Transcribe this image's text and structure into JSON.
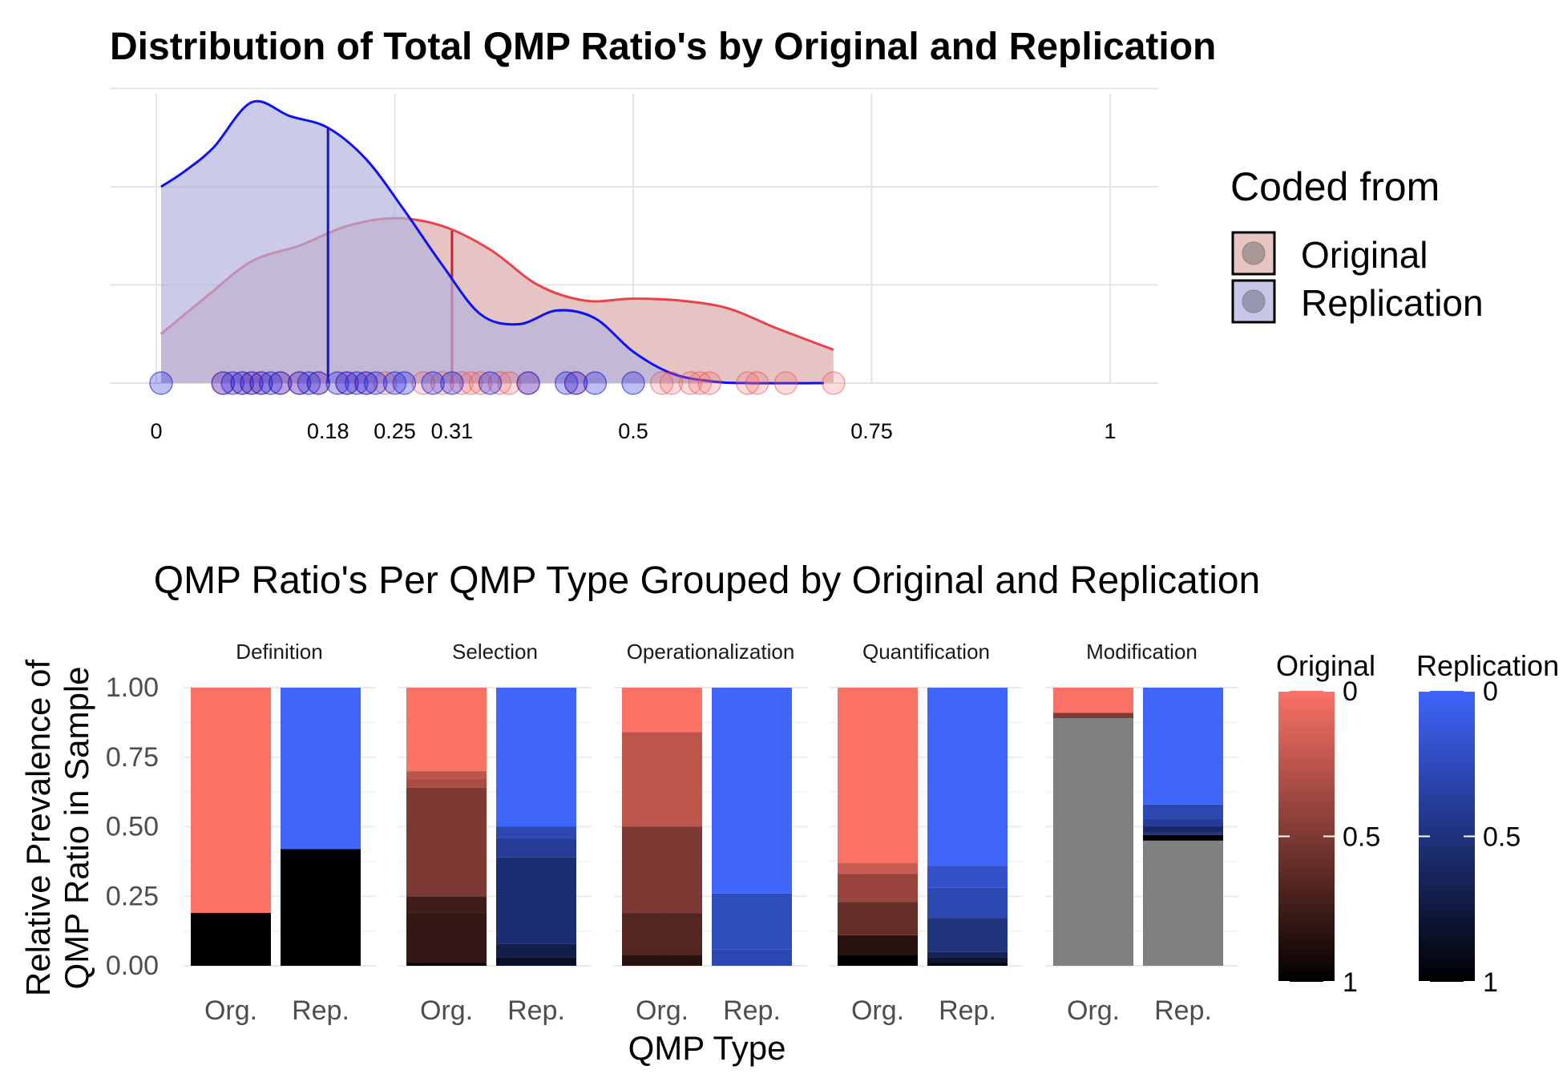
{
  "chart_data": [
    {
      "type": "area",
      "title": "Distribution of Total QMP Ratio's by Original and Replication",
      "xlabel": "",
      "ylabel": "",
      "xlim": [
        0,
        1
      ],
      "x_ticks": [
        0,
        0.18,
        0.25,
        0.31,
        0.5,
        0.75,
        1
      ],
      "x_tick_labels": [
        "0",
        "0.18",
        "0.25",
        "0.31",
        "0.5",
        "0.75",
        "1"
      ],
      "grid": true,
      "legend": {
        "title": "Coded from",
        "placement": "right",
        "entries": [
          "Original",
          "Replication"
        ]
      },
      "colors": {
        "Original": "#e8434a",
        "Replication": "#1010f0",
        "Original_fill": "#e6c4c4",
        "Replication_fill": "#c6c6e8"
      },
      "series": [
        {
          "name": "Original",
          "median": 0.31,
          "density_x": [
            0.005,
            0.05,
            0.1,
            0.15,
            0.2,
            0.25,
            0.3,
            0.35,
            0.4,
            0.45,
            0.5,
            0.55,
            0.6,
            0.65,
            0.71
          ],
          "density_y": [
            0.25,
            0.43,
            0.62,
            0.7,
            0.8,
            0.84,
            0.8,
            0.68,
            0.5,
            0.42,
            0.43,
            0.42,
            0.38,
            0.28,
            0.17
          ],
          "points": [
            0.07,
            0.09,
            0.1,
            0.11,
            0.13,
            0.15,
            0.17,
            0.2,
            0.22,
            0.24,
            0.28,
            0.3,
            0.32,
            0.33,
            0.34,
            0.36,
            0.37,
            0.39,
            0.44,
            0.53,
            0.54,
            0.56,
            0.57,
            0.58,
            0.62,
            0.63,
            0.66,
            0.71
          ]
        },
        {
          "name": "Replication",
          "median": 0.18,
          "density_x": [
            0.005,
            0.03,
            0.06,
            0.1,
            0.14,
            0.18,
            0.22,
            0.26,
            0.3,
            0.34,
            0.38,
            0.42,
            0.46,
            0.5,
            0.54,
            0.58,
            0.62,
            0.7
          ],
          "density_y": [
            1.0,
            1.08,
            1.2,
            1.43,
            1.36,
            1.3,
            1.14,
            0.88,
            0.6,
            0.35,
            0.3,
            0.37,
            0.33,
            0.16,
            0.05,
            0.01,
            0.0,
            0.0
          ],
          "points": [
            0.005,
            0.07,
            0.08,
            0.09,
            0.1,
            0.11,
            0.12,
            0.13,
            0.15,
            0.16,
            0.17,
            0.19,
            0.2,
            0.21,
            0.22,
            0.23,
            0.25,
            0.26,
            0.29,
            0.31,
            0.35,
            0.39,
            0.43,
            0.44,
            0.46,
            0.5
          ]
        }
      ]
    },
    {
      "type": "bar",
      "title": "QMP Ratio's Per QMP Type Grouped by Original and Replication",
      "xlabel": "QMP Type",
      "ylabel": "Relative Prevalence of QMP Ratio in Sample",
      "ylim": [
        0,
        1
      ],
      "y_ticks": [
        "0.00",
        "0.25",
        "0.50",
        "0.75",
        "1.00"
      ],
      "bar_labels": [
        "Org.",
        "Rep."
      ],
      "facets": [
        "Definition",
        "Selection",
        "Operationalization",
        "Quantification",
        "Modification"
      ],
      "na_color": "#808080",
      "colorbars": [
        {
          "title": "Original",
          "from": "#fa7266",
          "to": "#000000",
          "ticks": [
            "0",
            "0.5",
            "1"
          ]
        },
        {
          "title": "Replication",
          "from": "#3f65fb",
          "to": "#000000",
          "ticks": [
            "0",
            "0.5",
            "1"
          ]
        }
      ],
      "stacks": [
        [
          [
            {
              "ratio": 1,
              "share": 0.19
            },
            {
              "ratio": 0,
              "share": 0.81
            }
          ],
          [
            {
              "ratio": 1,
              "share": 0.42
            },
            {
              "ratio": 0,
              "share": 0.58
            }
          ]
        ],
        [
          [
            {
              "ratio": 1,
              "share": 0.01
            },
            {
              "ratio": 0.8,
              "share": 0.18
            },
            {
              "ratio": 0.75,
              "share": 0.06
            },
            {
              "ratio": 0.5,
              "share": 0.39
            },
            {
              "ratio": 0.33,
              "share": 0.03
            },
            {
              "ratio": 0.25,
              "share": 0.03
            },
            {
              "ratio": 0,
              "share": 0.3
            }
          ],
          [
            {
              "ratio": 0.85,
              "share": 0.03
            },
            {
              "ratio": 0.7,
              "share": 0.05
            },
            {
              "ratio": 0.55,
              "share": 0.31
            },
            {
              "ratio": 0.4,
              "share": 0.07
            },
            {
              "ratio": 0.3,
              "share": 0.04
            },
            {
              "ratio": 0,
              "share": 0.5
            }
          ]
        ],
        [
          [
            {
              "ratio": 0.85,
              "share": 0.04
            },
            {
              "ratio": 0.67,
              "share": 0.15
            },
            {
              "ratio": 0.5,
              "share": 0.31
            },
            {
              "ratio": 0.25,
              "share": 0.34
            },
            {
              "ratio": 0,
              "share": 0.16
            }
          ],
          [
            {
              "ratio": 0.3,
              "share": 0.06
            },
            {
              "ratio": 0.25,
              "share": 0.2
            },
            {
              "ratio": 0,
              "share": 0.74
            }
          ]
        ],
        [
          [
            {
              "ratio": 1,
              "share": 0.04
            },
            {
              "ratio": 0.85,
              "share": 0.07
            },
            {
              "ratio": 0.6,
              "share": 0.12
            },
            {
              "ratio": 0.4,
              "share": 0.1
            },
            {
              "ratio": 0.2,
              "share": 0.04
            },
            {
              "ratio": 0,
              "share": 0.63
            }
          ],
          [
            {
              "ratio": 0.95,
              "share": 0.01
            },
            {
              "ratio": 0.8,
              "share": 0.02
            },
            {
              "ratio": 0.65,
              "share": 0.02
            },
            {
              "ratio": 0.5,
              "share": 0.12
            },
            {
              "ratio": 0.3,
              "share": 0.11
            },
            {
              "ratio": 0.2,
              "share": 0.08
            },
            {
              "ratio": 0,
              "share": 0.64
            }
          ]
        ],
        [
          [
            {
              "ratio": null,
              "share": 0.89
            },
            {
              "ratio": 0.5,
              "share": 0.02
            },
            {
              "ratio": 0,
              "share": 0.09
            }
          ],
          [
            {
              "ratio": null,
              "share": 0.45
            },
            {
              "ratio": 1,
              "share": 0.02
            },
            {
              "ratio": 0.5,
              "share": 0.01
            },
            {
              "ratio": 0.6,
              "share": 0.02
            },
            {
              "ratio": 0.4,
              "share": 0.03
            },
            {
              "ratio": 0.3,
              "share": 0.05
            },
            {
              "ratio": 0,
              "share": 0.42
            }
          ]
        ]
      ]
    }
  ]
}
